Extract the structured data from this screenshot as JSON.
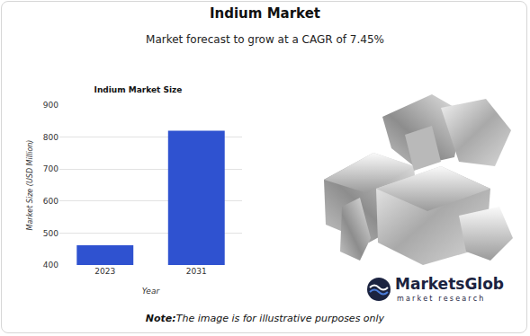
{
  "page": {
    "title": "Indium Market",
    "subtitle": "Market forecast to grow at a CAGR of 7.45%",
    "logo_name": "MarketsGlob",
    "logo_tagline": "market research",
    "note_label": "Note:",
    "note_text": "The image is for illustrative purposes only"
  },
  "chart_data": {
    "type": "bar",
    "title": "Indium Market Size",
    "x_label": "Year",
    "y_label": "Market Size (USD Million)",
    "categories": [
      "2023",
      "2031"
    ],
    "values": [
      462,
      820
    ],
    "color": "#2f52d0",
    "ylim": [
      400,
      900
    ],
    "yticks": [
      400,
      500,
      600,
      700,
      800,
      900
    ],
    "grid": true
  }
}
